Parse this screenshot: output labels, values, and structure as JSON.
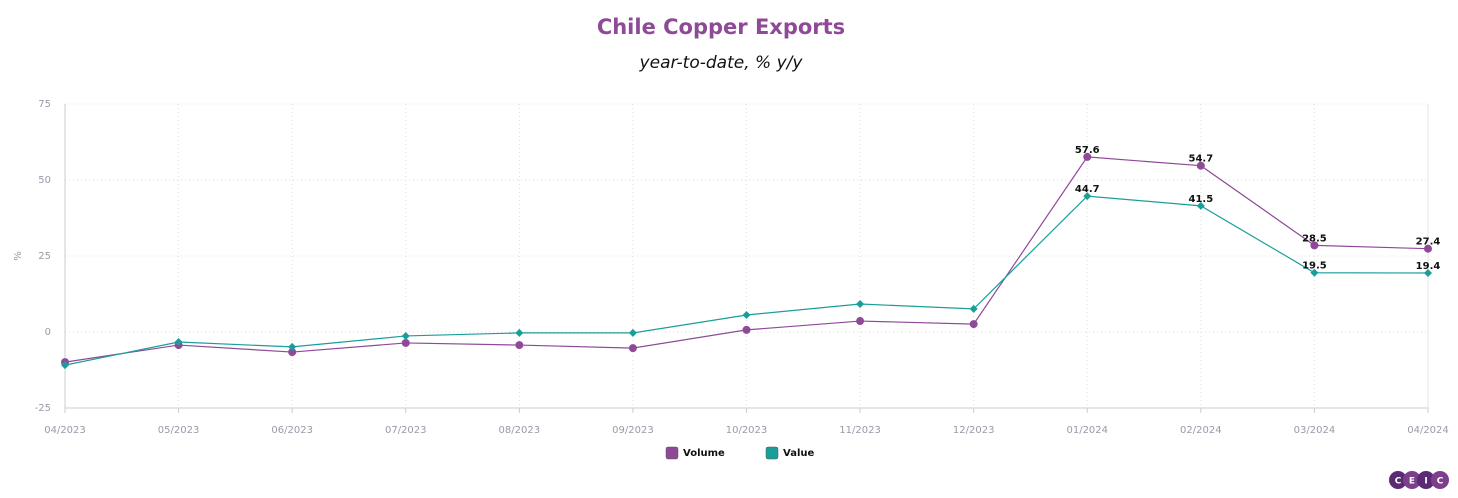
{
  "chart_data": {
    "type": "line",
    "title": "Chile Copper Exports",
    "subtitle": "year-to-date, % y/y",
    "y_label": "%",
    "categories": [
      "04/2023",
      "05/2023",
      "06/2023",
      "07/2023",
      "08/2023",
      "09/2023",
      "10/2023",
      "11/2023",
      "12/2023",
      "01/2024",
      "02/2024",
      "03/2024",
      "04/2024"
    ],
    "series": [
      {
        "name": "Volume",
        "color": "#8e4a97",
        "marker": "circle",
        "values": [
          -9.9,
          -4.3,
          -6.6,
          -3.6,
          -4.3,
          -5.3,
          0.7,
          3.6,
          2.6,
          57.6,
          54.7,
          28.5,
          27.4
        ],
        "value_labels": [
          null,
          null,
          null,
          null,
          null,
          null,
          null,
          null,
          null,
          "57.6",
          "54.7",
          "28.5",
          "27.4"
        ]
      },
      {
        "name": "Value",
        "color": "#1a9e9a",
        "marker": "diamond",
        "values": [
          -10.9,
          -3.3,
          -4.9,
          -1.3,
          -0.3,
          -0.3,
          5.6,
          9.2,
          7.6,
          44.7,
          41.5,
          19.5,
          19.4
        ],
        "value_labels": [
          null,
          null,
          null,
          null,
          null,
          null,
          null,
          null,
          null,
          "44.7",
          "41.5",
          "19.5",
          "19.4"
        ]
      }
    ],
    "ylim": [
      -25,
      75
    ],
    "yticks": [
      -25,
      0,
      25,
      50,
      75
    ],
    "grid": true,
    "legend": "bottom",
    "logo": [
      "C",
      "E",
      "I",
      "C"
    ]
  }
}
